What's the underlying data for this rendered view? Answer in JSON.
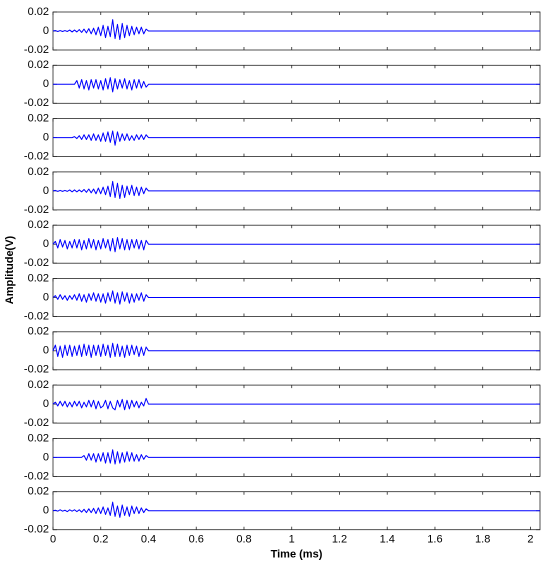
{
  "ylabel": "Amplitude(V)",
  "chart_data": [
    {
      "type": "line",
      "color": "#0000ff",
      "xlim": [
        0,
        2.04
      ],
      "xticks": [
        0,
        0.2,
        0.4,
        0.6,
        0.8,
        1,
        1.2,
        1.4,
        1.6,
        1.8,
        2
      ],
      "ylim": [
        -0.02,
        0.02
      ],
      "yticks": [
        -0.02,
        0,
        0.02
      ],
      "x": [
        0,
        0.01,
        0.02,
        0.03,
        0.04,
        0.05,
        0.06,
        0.07,
        0.08,
        0.09,
        0.1,
        0.11,
        0.12,
        0.13,
        0.14,
        0.15,
        0.16,
        0.17,
        0.18,
        0.19,
        0.2,
        0.21,
        0.22,
        0.23,
        0.24,
        0.25,
        0.26,
        0.27,
        0.28,
        0.29,
        0.3,
        0.31,
        0.32,
        0.33,
        0.34,
        0.35,
        0.36,
        0.37,
        0.38,
        0.39,
        0.4,
        2.04
      ],
      "values": [
        0,
        0.0005,
        -0.0005,
        0.0005,
        -0.0005,
        0.0005,
        -0.0005,
        0.001,
        -0.001,
        0.001,
        -0.001,
        0.0015,
        -0.0015,
        0.002,
        -0.002,
        0.0025,
        -0.003,
        0.003,
        -0.004,
        0.004,
        -0.005,
        0.006,
        -0.007,
        0.005,
        -0.006,
        0.012,
        -0.008,
        0.007,
        -0.009,
        0.008,
        -0.007,
        0.006,
        -0.005,
        0.005,
        -0.004,
        0.004,
        -0.003,
        0.004,
        -0.003,
        0.002,
        0,
        0
      ]
    },
    {
      "type": "line",
      "color": "#0000ff",
      "xlim": [
        0,
        2.04
      ],
      "xticks": [
        0,
        0.2,
        0.4,
        0.6,
        0.8,
        1,
        1.2,
        1.4,
        1.6,
        1.8,
        2
      ],
      "ylim": [
        -0.02,
        0.02
      ],
      "yticks": [
        -0.02,
        0,
        0.02
      ],
      "x": [
        0,
        0.01,
        0.02,
        0.03,
        0.04,
        0.05,
        0.06,
        0.07,
        0.08,
        0.09,
        0.1,
        0.11,
        0.12,
        0.13,
        0.14,
        0.15,
        0.16,
        0.17,
        0.18,
        0.19,
        0.2,
        0.21,
        0.22,
        0.23,
        0.24,
        0.25,
        0.26,
        0.27,
        0.28,
        0.29,
        0.3,
        0.31,
        0.32,
        0.33,
        0.34,
        0.35,
        0.36,
        0.37,
        0.38,
        0.39,
        0.4,
        2.04
      ],
      "values": [
        0,
        0,
        0,
        0,
        0,
        0,
        0,
        0,
        0,
        0,
        0.004,
        -0.004,
        0.005,
        -0.005,
        0.004,
        -0.006,
        0.005,
        -0.004,
        0.005,
        -0.005,
        0.004,
        -0.006,
        0.006,
        -0.005,
        0.007,
        -0.008,
        0.006,
        -0.005,
        0.005,
        -0.004,
        0.006,
        -0.005,
        0.004,
        -0.006,
        0.005,
        -0.004,
        0.005,
        -0.004,
        0.003,
        -0.003,
        0,
        0
      ]
    },
    {
      "type": "line",
      "color": "#0000ff",
      "xlim": [
        0,
        2.04
      ],
      "xticks": [
        0,
        0.2,
        0.4,
        0.6,
        0.8,
        1,
        1.2,
        1.4,
        1.6,
        1.8,
        2
      ],
      "ylim": [
        -0.02,
        0.02
      ],
      "yticks": [
        -0.02,
        0,
        0.02
      ],
      "x": [
        0,
        0.01,
        0.02,
        0.03,
        0.04,
        0.05,
        0.06,
        0.07,
        0.08,
        0.09,
        0.1,
        0.11,
        0.12,
        0.13,
        0.14,
        0.15,
        0.16,
        0.17,
        0.18,
        0.19,
        0.2,
        0.21,
        0.22,
        0.23,
        0.24,
        0.25,
        0.26,
        0.27,
        0.28,
        0.29,
        0.3,
        0.31,
        0.32,
        0.33,
        0.34,
        0.35,
        0.36,
        0.37,
        0.38,
        0.39,
        0.4,
        2.04
      ],
      "values": [
        0,
        0,
        0,
        0,
        0,
        0,
        0,
        0,
        0,
        0.001,
        -0.001,
        0.002,
        -0.002,
        0.003,
        -0.002,
        0.003,
        -0.003,
        0.004,
        -0.003,
        0.003,
        -0.004,
        0.005,
        -0.004,
        0.006,
        -0.005,
        0.007,
        -0.008,
        0.006,
        -0.004,
        0.004,
        -0.003,
        0.004,
        -0.003,
        0.002,
        -0.003,
        0.003,
        -0.002,
        0.003,
        -0.002,
        0.003,
        0,
        0
      ]
    },
    {
      "type": "line",
      "color": "#0000ff",
      "xlim": [
        0,
        2.04
      ],
      "xticks": [
        0,
        0.2,
        0.4,
        0.6,
        0.8,
        1,
        1.2,
        1.4,
        1.6,
        1.8,
        2
      ],
      "ylim": [
        -0.02,
        0.02
      ],
      "yticks": [
        -0.02,
        0,
        0.02
      ],
      "x": [
        0,
        0.01,
        0.02,
        0.03,
        0.04,
        0.05,
        0.06,
        0.07,
        0.08,
        0.09,
        0.1,
        0.11,
        0.12,
        0.13,
        0.14,
        0.15,
        0.16,
        0.17,
        0.18,
        0.19,
        0.2,
        0.21,
        0.22,
        0.23,
        0.24,
        0.25,
        0.26,
        0.27,
        0.28,
        0.29,
        0.3,
        0.31,
        0.32,
        0.33,
        0.34,
        0.35,
        0.36,
        0.37,
        0.38,
        0.39,
        0.4,
        2.04
      ],
      "values": [
        0,
        0.0005,
        -0.0005,
        0.0005,
        -0.0005,
        0.0005,
        -0.0005,
        0.001,
        -0.001,
        0.001,
        -0.001,
        0.001,
        -0.001,
        0.0015,
        -0.0015,
        0.002,
        -0.002,
        0.002,
        -0.003,
        0.003,
        -0.003,
        0.004,
        -0.004,
        0.005,
        -0.006,
        0.01,
        -0.007,
        0.008,
        -0.008,
        0.006,
        -0.007,
        0.005,
        -0.004,
        0.006,
        -0.005,
        0.004,
        -0.005,
        0.004,
        -0.003,
        0.003,
        0,
        0
      ]
    },
    {
      "type": "line",
      "color": "#0000ff",
      "xlim": [
        0,
        2.04
      ],
      "xticks": [
        0,
        0.2,
        0.4,
        0.6,
        0.8,
        1,
        1.2,
        1.4,
        1.6,
        1.8,
        2
      ],
      "ylim": [
        -0.02,
        0.02
      ],
      "yticks": [
        -0.02,
        0,
        0.02
      ],
      "x": [
        0,
        0.01,
        0.02,
        0.03,
        0.04,
        0.05,
        0.06,
        0.07,
        0.08,
        0.09,
        0.1,
        0.11,
        0.12,
        0.13,
        0.14,
        0.15,
        0.16,
        0.17,
        0.18,
        0.19,
        0.2,
        0.21,
        0.22,
        0.23,
        0.24,
        0.25,
        0.26,
        0.27,
        0.28,
        0.29,
        0.3,
        0.31,
        0.32,
        0.33,
        0.34,
        0.35,
        0.36,
        0.37,
        0.38,
        0.39,
        0.4,
        2.04
      ],
      "values": [
        0,
        0.003,
        -0.004,
        0.005,
        -0.003,
        0.004,
        -0.005,
        0.003,
        -0.004,
        0.005,
        -0.004,
        0.005,
        -0.006,
        0.004,
        -0.005,
        0.006,
        -0.004,
        0.005,
        -0.006,
        0.004,
        -0.005,
        0.006,
        -0.004,
        0.005,
        -0.007,
        0.006,
        -0.008,
        0.007,
        -0.005,
        0.006,
        -0.006,
        0.005,
        -0.006,
        0.005,
        -0.004,
        0.005,
        -0.005,
        0.004,
        -0.006,
        0.004,
        0,
        0
      ]
    },
    {
      "type": "line",
      "color": "#0000ff",
      "xlim": [
        0,
        2.04
      ],
      "xticks": [
        0,
        0.2,
        0.4,
        0.6,
        0.8,
        1,
        1.2,
        1.4,
        1.6,
        1.8,
        2
      ],
      "ylim": [
        -0.02,
        0.02
      ],
      "yticks": [
        -0.02,
        0,
        0.02
      ],
      "x": [
        0,
        0.01,
        0.02,
        0.03,
        0.04,
        0.05,
        0.06,
        0.07,
        0.08,
        0.09,
        0.1,
        0.11,
        0.12,
        0.13,
        0.14,
        0.15,
        0.16,
        0.17,
        0.18,
        0.19,
        0.2,
        0.21,
        0.22,
        0.23,
        0.24,
        0.25,
        0.26,
        0.27,
        0.28,
        0.29,
        0.3,
        0.31,
        0.32,
        0.33,
        0.34,
        0.35,
        0.36,
        0.37,
        0.38,
        0.39,
        0.4,
        2.04
      ],
      "values": [
        0,
        0.002,
        -0.002,
        0.003,
        -0.002,
        0.002,
        -0.003,
        0.002,
        -0.002,
        0.003,
        -0.003,
        0.004,
        -0.004,
        0.003,
        -0.005,
        0.004,
        -0.003,
        0.005,
        -0.004,
        0.004,
        -0.005,
        0.004,
        -0.006,
        0.005,
        -0.004,
        0.007,
        -0.006,
        0.005,
        -0.007,
        0.006,
        -0.004,
        0.005,
        -0.006,
        0.004,
        -0.005,
        0.004,
        -0.003,
        0.005,
        -0.004,
        0.003,
        0,
        0
      ]
    },
    {
      "type": "line",
      "color": "#0000ff",
      "xlim": [
        0,
        2.04
      ],
      "xticks": [
        0,
        0.2,
        0.4,
        0.6,
        0.8,
        1,
        1.2,
        1.4,
        1.6,
        1.8,
        2
      ],
      "ylim": [
        -0.02,
        0.02
      ],
      "yticks": [
        -0.02,
        0,
        0.02
      ],
      "x": [
        0,
        0.01,
        0.02,
        0.03,
        0.04,
        0.05,
        0.06,
        0.07,
        0.08,
        0.09,
        0.1,
        0.11,
        0.12,
        0.13,
        0.14,
        0.15,
        0.16,
        0.17,
        0.18,
        0.19,
        0.2,
        0.21,
        0.22,
        0.23,
        0.24,
        0.25,
        0.26,
        0.27,
        0.28,
        0.29,
        0.3,
        0.31,
        0.32,
        0.33,
        0.34,
        0.35,
        0.36,
        0.37,
        0.38,
        0.39,
        0.4,
        2.04
      ],
      "values": [
        0,
        0.006,
        -0.006,
        0.005,
        -0.007,
        0.006,
        -0.005,
        0.006,
        -0.006,
        0.005,
        -0.005,
        0.006,
        -0.006,
        0.007,
        -0.005,
        0.006,
        -0.007,
        0.006,
        -0.005,
        0.006,
        -0.006,
        0.007,
        -0.005,
        0.006,
        -0.007,
        0.008,
        -0.006,
        0.007,
        -0.006,
        0.005,
        -0.007,
        0.006,
        -0.005,
        0.006,
        -0.004,
        0.005,
        -0.006,
        0.004,
        -0.005,
        0.004,
        0,
        0
      ]
    },
    {
      "type": "line",
      "color": "#0000ff",
      "xlim": [
        0,
        2.04
      ],
      "xticks": [
        0,
        0.2,
        0.4,
        0.6,
        0.8,
        1,
        1.2,
        1.4,
        1.6,
        1.8,
        2
      ],
      "ylim": [
        -0.02,
        0.02
      ],
      "yticks": [
        -0.02,
        0,
        0.02
      ],
      "x": [
        0,
        0.01,
        0.02,
        0.03,
        0.04,
        0.05,
        0.06,
        0.07,
        0.08,
        0.09,
        0.1,
        0.11,
        0.12,
        0.13,
        0.14,
        0.15,
        0.16,
        0.17,
        0.18,
        0.19,
        0.2,
        0.21,
        0.22,
        0.23,
        0.24,
        0.25,
        0.26,
        0.27,
        0.28,
        0.29,
        0.3,
        0.31,
        0.32,
        0.33,
        0.34,
        0.35,
        0.36,
        0.37,
        0.38,
        0.39,
        0.4,
        2.04
      ],
      "values": [
        0,
        0.002,
        -0.002,
        0.003,
        -0.002,
        0.003,
        -0.003,
        0.002,
        -0.003,
        0.003,
        -0.002,
        0.003,
        -0.004,
        0.002,
        -0.003,
        0.004,
        -0.003,
        0.004,
        -0.005,
        0.003,
        -0.004,
        -0.002,
        0.004,
        -0.005,
        0.003,
        -0.004,
        -0.006,
        0.004,
        -0.003,
        0.005,
        -0.006,
        0.004,
        -0.005,
        0.004,
        -0.003,
        0.003,
        -0.004,
        0.002,
        -0.002,
        0.006,
        0,
        0
      ]
    },
    {
      "type": "line",
      "color": "#0000ff",
      "xlim": [
        0,
        2.04
      ],
      "xticks": [
        0,
        0.2,
        0.4,
        0.6,
        0.8,
        1,
        1.2,
        1.4,
        1.6,
        1.8,
        2
      ],
      "ylim": [
        -0.02,
        0.02
      ],
      "yticks": [
        -0.02,
        0,
        0.02
      ],
      "x": [
        0,
        0.01,
        0.02,
        0.03,
        0.04,
        0.05,
        0.06,
        0.07,
        0.08,
        0.09,
        0.1,
        0.11,
        0.12,
        0.13,
        0.14,
        0.15,
        0.16,
        0.17,
        0.18,
        0.19,
        0.2,
        0.21,
        0.22,
        0.23,
        0.24,
        0.25,
        0.26,
        0.27,
        0.28,
        0.29,
        0.3,
        0.31,
        0.32,
        0.33,
        0.34,
        0.35,
        0.36,
        0.37,
        0.38,
        0.39,
        0.4,
        2.04
      ],
      "values": [
        0,
        0,
        0,
        0,
        0,
        0,
        0,
        0,
        0,
        0,
        0,
        0,
        0,
        0.002,
        -0.003,
        0.004,
        -0.003,
        0.004,
        -0.005,
        0.004,
        -0.004,
        0.005,
        -0.006,
        0.005,
        -0.006,
        0.008,
        -0.007,
        0.006,
        -0.006,
        0.005,
        -0.005,
        0.006,
        -0.004,
        0.005,
        -0.004,
        0.003,
        -0.004,
        0.003,
        -0.002,
        0.002,
        0,
        0
      ]
    },
    {
      "type": "line",
      "color": "#0000ff",
      "xlim": [
        0,
        2.04
      ],
      "xticks": [
        0,
        0.2,
        0.4,
        0.6,
        0.8,
        1,
        1.2,
        1.4,
        1.6,
        1.8,
        2
      ],
      "ylim": [
        -0.02,
        0.02
      ],
      "yticks": [
        -0.02,
        0,
        0.02
      ],
      "xlabel": "Time (ms)",
      "x": [
        0,
        0.01,
        0.02,
        0.03,
        0.04,
        0.05,
        0.06,
        0.07,
        0.08,
        0.09,
        0.1,
        0.11,
        0.12,
        0.13,
        0.14,
        0.15,
        0.16,
        0.17,
        0.18,
        0.19,
        0.2,
        0.21,
        0.22,
        0.23,
        0.24,
        0.25,
        0.26,
        0.27,
        0.28,
        0.29,
        0.3,
        0.31,
        0.32,
        0.33,
        0.34,
        0.35,
        0.36,
        0.37,
        0.38,
        0.39,
        0.4,
        2.04
      ],
      "values": [
        0,
        0.0005,
        -0.0005,
        0.001,
        -0.0005,
        0.0005,
        -0.001,
        0.001,
        -0.0005,
        0.001,
        -0.001,
        0.001,
        -0.0015,
        0.0015,
        -0.002,
        0.002,
        -0.002,
        0.0025,
        -0.003,
        0.003,
        -0.003,
        0.004,
        -0.004,
        0.003,
        -0.005,
        0.009,
        -0.006,
        0.005,
        -0.007,
        0.006,
        -0.005,
        0.004,
        -0.006,
        0.005,
        -0.003,
        0.004,
        -0.003,
        0.003,
        -0.002,
        0.002,
        0,
        0
      ]
    }
  ]
}
